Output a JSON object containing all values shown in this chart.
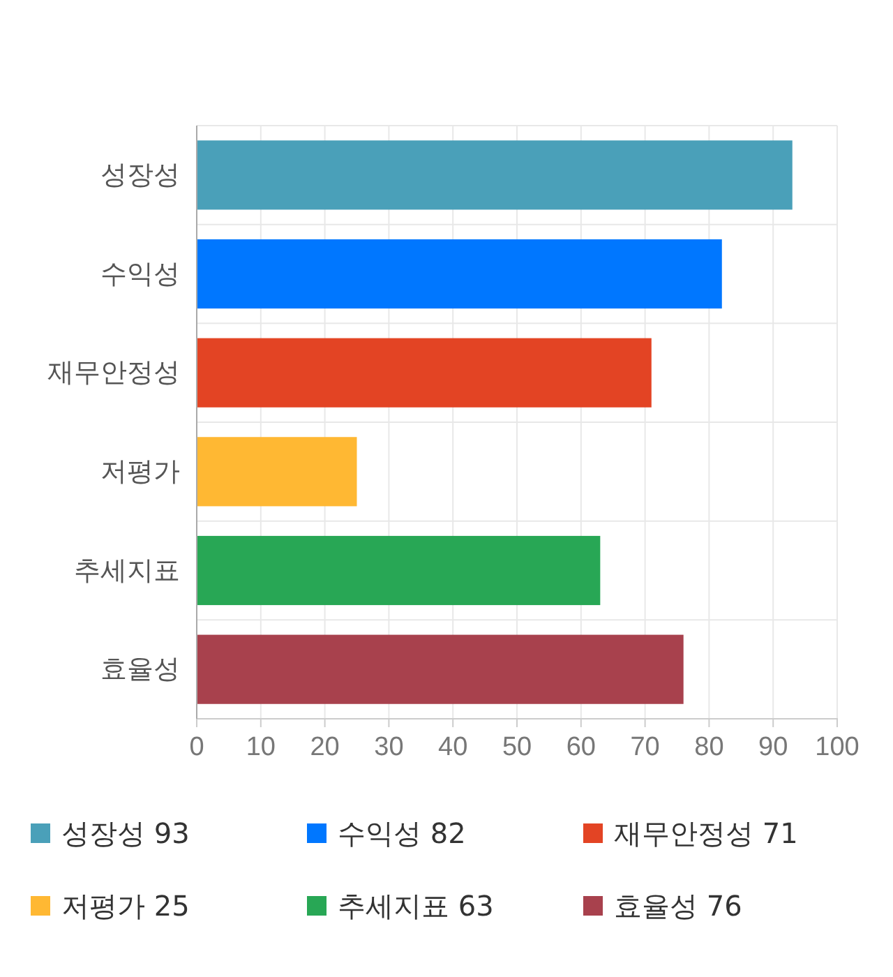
{
  "chart_data": {
    "type": "bar",
    "orientation": "horizontal",
    "stacked": true,
    "categories": [
      "성장성",
      "수익성",
      "재무안정성",
      "저평가",
      "추세지표",
      "효율성"
    ],
    "series": [
      {
        "name": "성장성 93",
        "color": "#4aa0b9",
        "values": [
          93,
          null,
          null,
          null,
          null,
          null
        ]
      },
      {
        "name": "수익성 82",
        "color": "#0077ff",
        "values": [
          null,
          82,
          null,
          null,
          null,
          null
        ]
      },
      {
        "name": "재무안정성 71",
        "color": "#e34424",
        "values": [
          null,
          null,
          71,
          null,
          null,
          null
        ]
      },
      {
        "name": "저평가 25",
        "color": "#ffb833",
        "values": [
          null,
          null,
          null,
          25,
          null,
          null
        ]
      },
      {
        "name": "추세지표 63",
        "color": "#28a755",
        "values": [
          null,
          null,
          null,
          null,
          63,
          null
        ]
      },
      {
        "name": "효율성 76",
        "color": "#a8414d",
        "values": [
          null,
          null,
          null,
          null,
          null,
          76
        ]
      }
    ],
    "xlim": [
      0,
      100
    ],
    "xticks": [
      0,
      10,
      20,
      30,
      40,
      50,
      60,
      70,
      80,
      90,
      100
    ],
    "grid": true,
    "legend": "bottom"
  }
}
